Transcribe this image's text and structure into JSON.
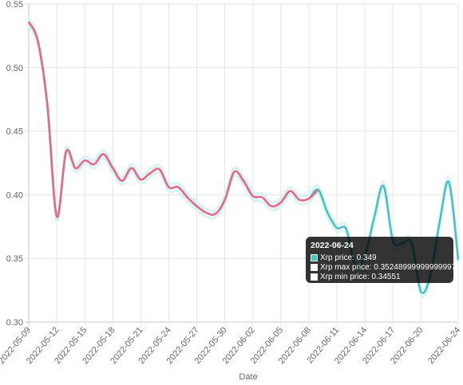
{
  "chart_data": {
    "type": "line",
    "xlabel": "Date",
    "ylim": [
      0.3,
      0.55
    ],
    "yticks": [
      "0.30",
      "0.35",
      "0.40",
      "0.45",
      "0.50",
      "0.55"
    ],
    "x_tick_labels": [
      "2022-05-09",
      "2022-05-12",
      "2022-05-15",
      "2022-05-18",
      "2022-05-21",
      "2022-05-24",
      "2022-05-27",
      "2022-05-30",
      "2022-06-02",
      "2022-06-05",
      "2022-06-08",
      "2022-06-11",
      "2022-06-14",
      "2022-06-17",
      "2022-06-20",
      "2022-06-24"
    ],
    "grid": true,
    "series": [
      {
        "name": "Xrp price",
        "color": "#4bc0c0",
        "highlight_color": "#e8688a",
        "points": [
          [
            "2022-05-09",
            0.536
          ],
          [
            "2022-05-10",
            0.52
          ],
          [
            "2022-05-11",
            0.47
          ],
          [
            "2022-05-12",
            0.383
          ],
          [
            "2022-05-13",
            0.434
          ],
          [
            "2022-05-14",
            0.421
          ],
          [
            "2022-05-15",
            0.427
          ],
          [
            "2022-05-16",
            0.424
          ],
          [
            "2022-05-17",
            0.432
          ],
          [
            "2022-05-18",
            0.421
          ],
          [
            "2022-05-19",
            0.411
          ],
          [
            "2022-05-20",
            0.421
          ],
          [
            "2022-05-21",
            0.412
          ],
          [
            "2022-05-22",
            0.417
          ],
          [
            "2022-05-23",
            0.42
          ],
          [
            "2022-05-24",
            0.406
          ],
          [
            "2022-05-25",
            0.406
          ],
          [
            "2022-05-26",
            0.398
          ],
          [
            "2022-05-27",
            0.391
          ],
          [
            "2022-05-28",
            0.386
          ],
          [
            "2022-05-29",
            0.385
          ],
          [
            "2022-05-30",
            0.396
          ],
          [
            "2022-05-31",
            0.418
          ],
          [
            "2022-06-01",
            0.411
          ],
          [
            "2022-06-02",
            0.399
          ],
          [
            "2022-06-03",
            0.398
          ],
          [
            "2022-06-04",
            0.391
          ],
          [
            "2022-06-05",
            0.394
          ],
          [
            "2022-06-06",
            0.403
          ],
          [
            "2022-06-07",
            0.396
          ],
          [
            "2022-06-08",
            0.397
          ],
          [
            "2022-06-09",
            0.404
          ],
          [
            "2022-06-10",
            0.386
          ],
          [
            "2022-06-11",
            0.374
          ],
          [
            "2022-06-12",
            0.373
          ],
          [
            "2022-06-13",
            0.344
          ],
          [
            "2022-06-14",
            0.352
          ],
          [
            "2022-06-15",
            0.382
          ],
          [
            "2022-06-16",
            0.407
          ],
          [
            "2022-06-17",
            0.364
          ],
          [
            "2022-06-18",
            0.362
          ],
          [
            "2022-06-19",
            0.362
          ],
          [
            "2022-06-20",
            0.324
          ],
          [
            "2022-06-21",
            0.336
          ],
          [
            "2022-06-22",
            0.378
          ],
          [
            "2022-06-23",
            0.41
          ],
          [
            "2022-06-24",
            0.349
          ]
        ]
      },
      {
        "name": "Xrp max price",
        "color": "#d9f2f2",
        "offset": 0.003
      },
      {
        "name": "Xrp min price",
        "color": "#d9f2f2",
        "offset": -0.003
      }
    ]
  },
  "tooltip": {
    "title": "2022-06-24",
    "rows": [
      {
        "label": "Xrp price: 0.349",
        "color": "#4bc0c0"
      },
      {
        "label": "Xrp max price: 0.35248999999999997",
        "color": "#ffffff"
      },
      {
        "label": "Xrp min price: 0.34551",
        "color": "#ffffff"
      }
    ]
  }
}
